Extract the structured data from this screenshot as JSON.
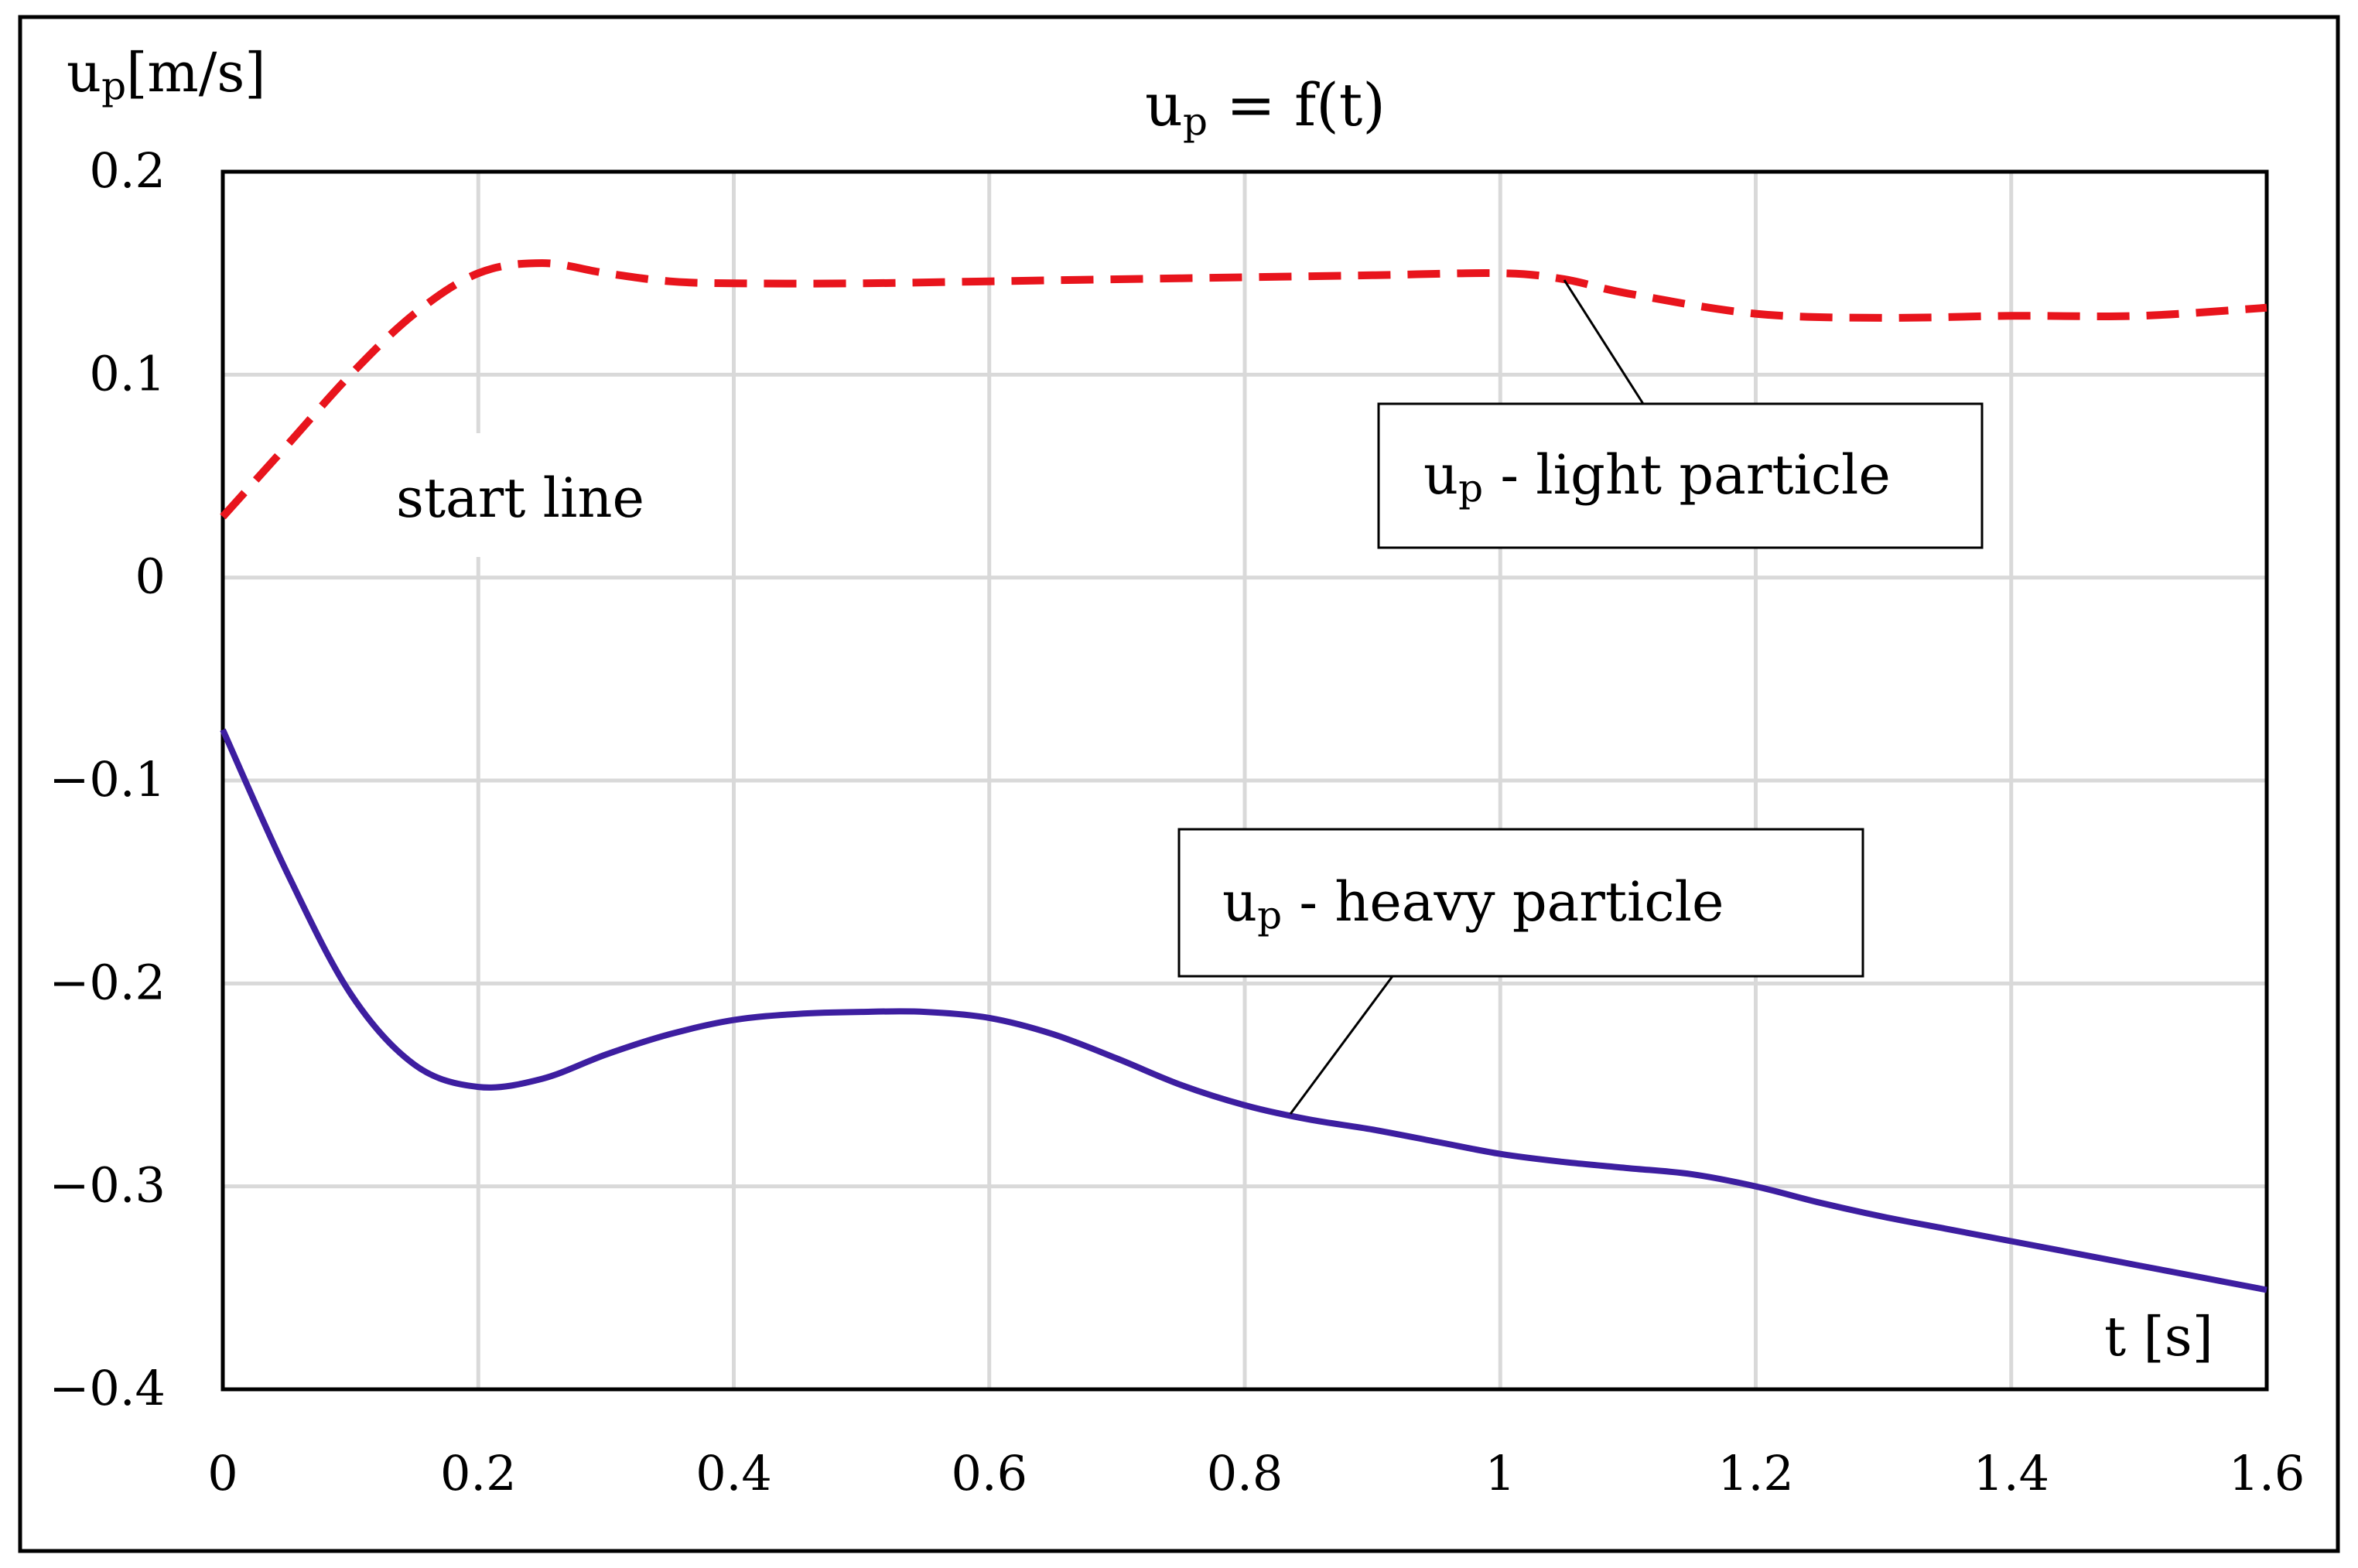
{
  "chart_data": {
    "type": "line",
    "title": "up = f(t)",
    "title_main": "u",
    "title_sub": "p",
    "title_rest": " = f(t)",
    "ylabel": "up[m/s]",
    "ylabel_main": "u",
    "ylabel_sub": "p",
    "ylabel_rest": "[m/s]",
    "xlabel": "t [s]",
    "xlim": [
      0,
      1.6
    ],
    "ylim": [
      -0.4,
      0.2
    ],
    "x_ticks": [
      0,
      0.2,
      0.4,
      0.6,
      0.8,
      1,
      1.2,
      1.4,
      1.6
    ],
    "x_tick_labels": [
      "0",
      "0.2",
      "0.4",
      "0.6",
      "0.8",
      "1",
      "1.2",
      "1.4",
      "1.6"
    ],
    "y_ticks": [
      0.2,
      0.1,
      0,
      -0.1,
      -0.2,
      -0.3,
      -0.4
    ],
    "y_tick_labels": [
      "0.2",
      "0.1",
      "0",
      "−0.1",
      "−0.2",
      "−0.3",
      "−0.4"
    ],
    "grid": true,
    "series": [
      {
        "name": "up - light particle",
        "label_main": "u",
        "label_sub": "p",
        "label_rest": " - light particle",
        "color": "#e8141c",
        "style": "dashed",
        "x": [
          0,
          0.05,
          0.1,
          0.15,
          0.2,
          0.25,
          0.3,
          0.35,
          0.4,
          0.5,
          0.6,
          0.7,
          0.8,
          0.9,
          1.0,
          1.05,
          1.1,
          1.2,
          1.3,
          1.4,
          1.5,
          1.6
        ],
        "y": [
          0.03,
          0.065,
          0.1,
          0.13,
          0.15,
          0.155,
          0.15,
          0.146,
          0.145,
          0.145,
          0.146,
          0.147,
          0.148,
          0.149,
          0.15,
          0.147,
          0.14,
          0.13,
          0.128,
          0.129,
          0.129,
          0.133
        ]
      },
      {
        "name": "up - heavy particle",
        "label_main": "u",
        "label_sub": "p",
        "label_rest": " - heavy particle",
        "color": "#3d1ea0",
        "style": "solid",
        "x": [
          0,
          0.05,
          0.1,
          0.15,
          0.2,
          0.25,
          0.3,
          0.35,
          0.4,
          0.45,
          0.5,
          0.55,
          0.6,
          0.65,
          0.7,
          0.75,
          0.8,
          0.85,
          0.9,
          0.95,
          1.0,
          1.05,
          1.1,
          1.15,
          1.2,
          1.25,
          1.3,
          1.35,
          1.4,
          1.45,
          1.5,
          1.55,
          1.6
        ],
        "y": [
          -0.075,
          -0.145,
          -0.205,
          -0.24,
          -0.251,
          -0.247,
          -0.235,
          -0.225,
          -0.218,
          -0.215,
          -0.214,
          -0.214,
          -0.217,
          -0.225,
          -0.237,
          -0.25,
          -0.26,
          -0.267,
          -0.272,
          -0.278,
          -0.284,
          -0.288,
          -0.291,
          -0.294,
          -0.3,
          -0.308,
          -0.315,
          -0.321,
          -0.327,
          -0.333,
          -0.339,
          -0.345,
          -0.351
        ]
      }
    ],
    "annotations": [
      {
        "text": "start line"
      }
    ]
  }
}
